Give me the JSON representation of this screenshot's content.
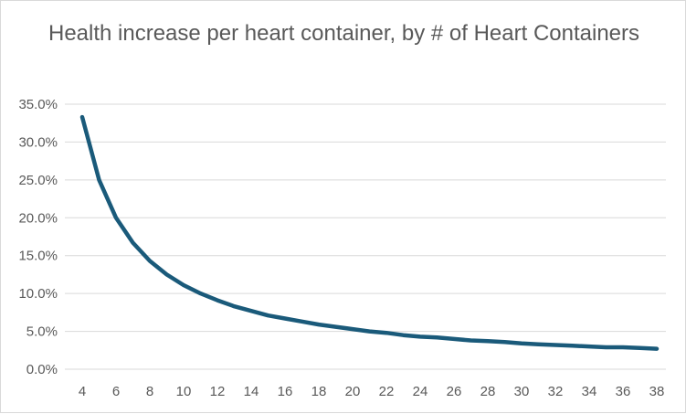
{
  "chart_data": {
    "type": "line",
    "title": "Health increase per heart container, by # of Heart Containers",
    "xlabel": "",
    "ylabel": "",
    "x": [
      4,
      5,
      6,
      7,
      8,
      9,
      10,
      11,
      12,
      13,
      14,
      15,
      16,
      17,
      18,
      19,
      20,
      21,
      22,
      23,
      24,
      25,
      26,
      27,
      28,
      29,
      30,
      31,
      32,
      33,
      34,
      35,
      36,
      37,
      38
    ],
    "series": [
      {
        "values": [
          33.3,
          25.0,
          20.0,
          16.7,
          14.3,
          12.5,
          11.1,
          10.0,
          9.1,
          8.3,
          7.7,
          7.1,
          6.7,
          6.3,
          5.9,
          5.6,
          5.3,
          5.0,
          4.8,
          4.5,
          4.3,
          4.2,
          4.0,
          3.8,
          3.7,
          3.6,
          3.4,
          3.3,
          3.2,
          3.1,
          3.0,
          2.9,
          2.9,
          2.8,
          2.7
        ],
        "color": "#1a5a7a"
      }
    ],
    "xticks": [
      "4",
      "6",
      "8",
      "10",
      "12",
      "14",
      "16",
      "18",
      "20",
      "22",
      "24",
      "26",
      "28",
      "30",
      "32",
      "34",
      "36",
      "38"
    ],
    "yticks": [
      "0.0%",
      "5.0%",
      "10.0%",
      "15.0%",
      "20.0%",
      "25.0%",
      "30.0%",
      "35.0%"
    ],
    "xlim": [
      4,
      38
    ],
    "ylim": [
      0,
      35
    ],
    "grid": "horizontal",
    "legend": "none"
  }
}
